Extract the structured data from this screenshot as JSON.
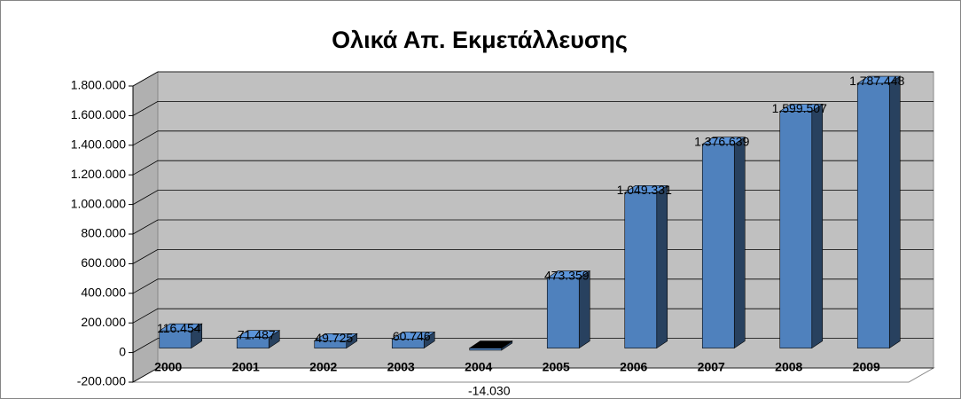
{
  "chart_data": {
    "type": "bar3d",
    "title": "Ολικά Απ. Εκμετάλλευσης",
    "categories": [
      "2000",
      "2001",
      "2002",
      "2003",
      "2004",
      "2005",
      "2006",
      "2007",
      "2008",
      "2009"
    ],
    "values": [
      116454,
      71487,
      49725,
      60746,
      -14030,
      473359,
      1049331,
      1376639,
      1599507,
      1787448
    ],
    "value_labels": [
      "116.454",
      "71.487",
      "49.725",
      "60.746",
      "-14.030",
      "473.359",
      "1.049.331",
      "1.376.639",
      "1.599.507",
      "1.787.448"
    ],
    "color": "#4f81bd",
    "ylim": [
      -200000,
      1800000
    ],
    "yticks": [
      {
        "value": -200000,
        "label": "-200.000"
      },
      0,
      {
        "value": 200000,
        "label": "200.000"
      },
      {
        "value": 400000,
        "label": "400.000"
      },
      {
        "value": 600000,
        "label": "600.000"
      },
      {
        "value": 800000,
        "label": "800.000"
      },
      {
        "value": 1000000,
        "label": "1.000.000"
      },
      {
        "value": 1200000,
        "label": "1.200.000"
      },
      {
        "value": 1400000,
        "label": "1.400.000"
      },
      {
        "value": 1600000,
        "label": "1.600.000"
      },
      {
        "value": 1800000,
        "label": "1.800.000"
      }
    ],
    "grid": true
  }
}
